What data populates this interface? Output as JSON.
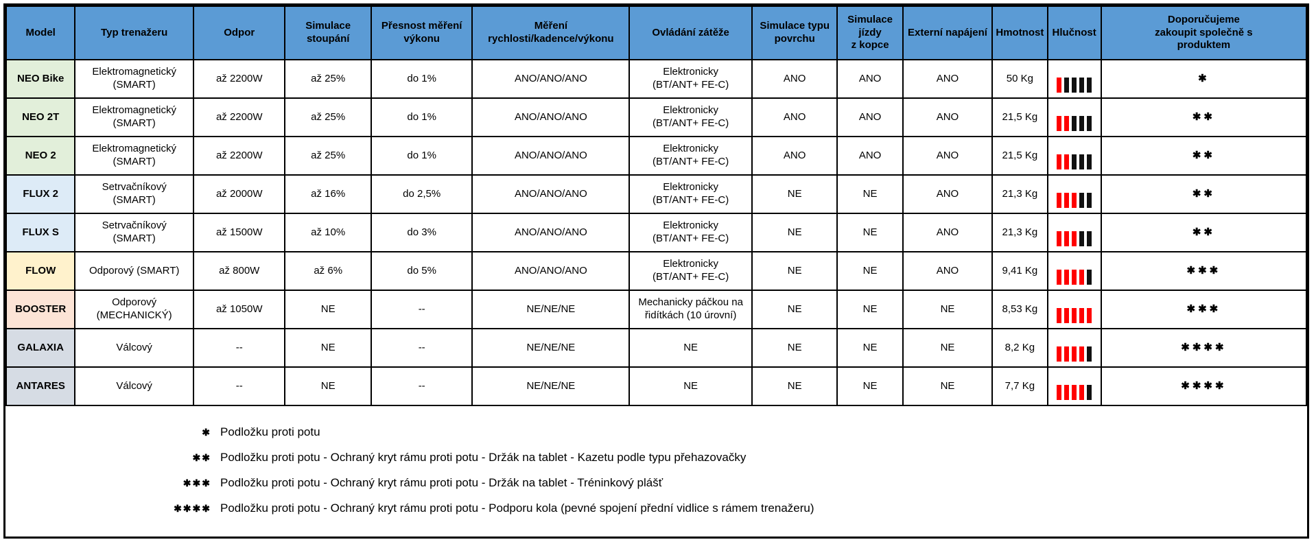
{
  "colors": {
    "header_bg": "#5b9bd5",
    "noise_red": "#ff0000",
    "noise_off": "#111111",
    "border": "#000000",
    "model_green": "#e2efda",
    "model_blue": "#ddebf7",
    "model_yellow": "#fff2cc",
    "model_pink": "#fce4d6",
    "model_gray": "#d6dce4"
  },
  "symbols": {
    "star": "✱",
    "noise_bar_icon": "vertical-bar"
  },
  "table": {
    "columns": [
      {
        "key": "model",
        "label": "Model"
      },
      {
        "key": "typ",
        "label": "Typ trenažeru"
      },
      {
        "key": "odpor",
        "label": "Odpor"
      },
      {
        "key": "stoupani",
        "label": "Simulace\nstoupání"
      },
      {
        "key": "presnost",
        "label": "Přesnost měření\nvýkonu"
      },
      {
        "key": "mereni",
        "label": "Měření\nrychlosti/kadence/výkonu"
      },
      {
        "key": "ovladani",
        "label": "Ovládání zátěže"
      },
      {
        "key": "povrch",
        "label": "Simulace typu\npovrchu"
      },
      {
        "key": "kopec",
        "label": "Simulace jízdy\nz kopce"
      },
      {
        "key": "napajeni",
        "label": "Externí napájení"
      },
      {
        "key": "hmotnost",
        "label": "Hmotnost"
      },
      {
        "key": "hlucnost",
        "label": "Hlučnost"
      },
      {
        "key": "doporuceni",
        "label": "Doporučujeme\nzakoupit společně s\nproduktem"
      }
    ],
    "rows": [
      {
        "model": "NEO Bike",
        "model_color": "#e2efda",
        "typ": "Elektromagnetický\n(SMART)",
        "odpor": "až 2200W",
        "stoupani": "až 25%",
        "presnost": "do 1%",
        "mereni": "ANO/ANO/ANO",
        "ovladani": "Elektronicky\n(BT/ANT+ FE-C)",
        "povrch": "ANO",
        "kopec": "ANO",
        "napajeni": "ANO",
        "hmotnost": "50 Kg",
        "noise_red": 1,
        "noise_total": 5,
        "recommended_stars": 1
      },
      {
        "model": "NEO 2T",
        "model_color": "#e2efda",
        "typ": "Elektromagnetický\n(SMART)",
        "odpor": "až 2200W",
        "stoupani": "až 25%",
        "presnost": "do 1%",
        "mereni": "ANO/ANO/ANO",
        "ovladani": "Elektronicky\n(BT/ANT+ FE-C)",
        "povrch": "ANO",
        "kopec": "ANO",
        "napajeni": "ANO",
        "hmotnost": "21,5 Kg",
        "noise_red": 2,
        "noise_total": 5,
        "recommended_stars": 2
      },
      {
        "model": "NEO 2",
        "model_color": "#e2efda",
        "typ": "Elektromagnetický\n(SMART)",
        "odpor": "až 2200W",
        "stoupani": "až 25%",
        "presnost": "do 1%",
        "mereni": "ANO/ANO/ANO",
        "ovladani": "Elektronicky\n(BT/ANT+ FE-C)",
        "povrch": "ANO",
        "kopec": "ANO",
        "napajeni": "ANO",
        "hmotnost": "21,5 Kg",
        "noise_red": 2,
        "noise_total": 5,
        "recommended_stars": 2
      },
      {
        "model": "FLUX 2",
        "model_color": "#ddebf7",
        "typ": "Setrvačníkový\n(SMART)",
        "odpor": "až 2000W",
        "stoupani": "až 16%",
        "presnost": "do 2,5%",
        "mereni": "ANO/ANO/ANO",
        "ovladani": "Elektronicky\n(BT/ANT+ FE-C)",
        "povrch": "NE",
        "kopec": "NE",
        "napajeni": "ANO",
        "hmotnost": "21,3 Kg",
        "noise_red": 3,
        "noise_total": 5,
        "recommended_stars": 2
      },
      {
        "model": "FLUX S",
        "model_color": "#ddebf7",
        "typ": "Setrvačníkový\n(SMART)",
        "odpor": "až 1500W",
        "stoupani": "až 10%",
        "presnost": "do 3%",
        "mereni": "ANO/ANO/ANO",
        "ovladani": "Elektronicky\n(BT/ANT+ FE-C)",
        "povrch": "NE",
        "kopec": "NE",
        "napajeni": "ANO",
        "hmotnost": "21,3 Kg",
        "noise_red": 3,
        "noise_total": 5,
        "recommended_stars": 2
      },
      {
        "model": "FLOW",
        "model_color": "#fff2cc",
        "typ": "Odporový (SMART)",
        "odpor": "až 800W",
        "stoupani": "až 6%",
        "presnost": "do 5%",
        "mereni": "ANO/ANO/ANO",
        "ovladani": "Elektronicky\n(BT/ANT+ FE-C)",
        "povrch": "NE",
        "kopec": "NE",
        "napajeni": "ANO",
        "hmotnost": "9,41 Kg",
        "noise_red": 4,
        "noise_total": 5,
        "recommended_stars": 3
      },
      {
        "model": "BOOSTER",
        "model_color": "#fce4d6",
        "typ": "Odporový\n(MECHANICKÝ)",
        "odpor": "až 1050W",
        "stoupani": "NE",
        "presnost": "--",
        "mereni": "NE/NE/NE",
        "ovladani": "Mechanicky páčkou na\nřidítkách (10 úrovní)",
        "povrch": "NE",
        "kopec": "NE",
        "napajeni": "NE",
        "hmotnost": "8,53 Kg",
        "noise_red": 5,
        "noise_total": 5,
        "recommended_stars": 3
      },
      {
        "model": "GALAXIA",
        "model_color": "#d6dce4",
        "typ": "Válcový",
        "odpor": "--",
        "stoupani": "NE",
        "presnost": "--",
        "mereni": "NE/NE/NE",
        "ovladani": "NE",
        "povrch": "NE",
        "kopec": "NE",
        "napajeni": "NE",
        "hmotnost": "8,2 Kg",
        "noise_red": 4,
        "noise_total": 5,
        "recommended_stars": 4
      },
      {
        "model": "ANTARES",
        "model_color": "#d6dce4",
        "typ": "Válcový",
        "odpor": "--",
        "stoupani": "NE",
        "presnost": "--",
        "mereni": "NE/NE/NE",
        "ovladani": "NE",
        "povrch": "NE",
        "kopec": "NE",
        "napajeni": "NE",
        "hmotnost": "7,7 Kg",
        "noise_red": 4,
        "noise_total": 5,
        "recommended_stars": 4
      }
    ]
  },
  "footnotes": [
    {
      "stars": 1,
      "text": "Podložku proti potu"
    },
    {
      "stars": 2,
      "text": "Podložku proti potu - Ochraný kryt rámu proti potu - Držák na tablet - Kazetu podle typu přehazovačky"
    },
    {
      "stars": 3,
      "text": "Podložku proti potu - Ochraný kryt rámu proti potu - Držák na tablet - Tréninkový plášť"
    },
    {
      "stars": 4,
      "text": "Podložku proti potu - Ochraný kryt rámu proti potu - Podporu kola (pevné spojení přední vidlice s rámem trenažeru)"
    }
  ]
}
